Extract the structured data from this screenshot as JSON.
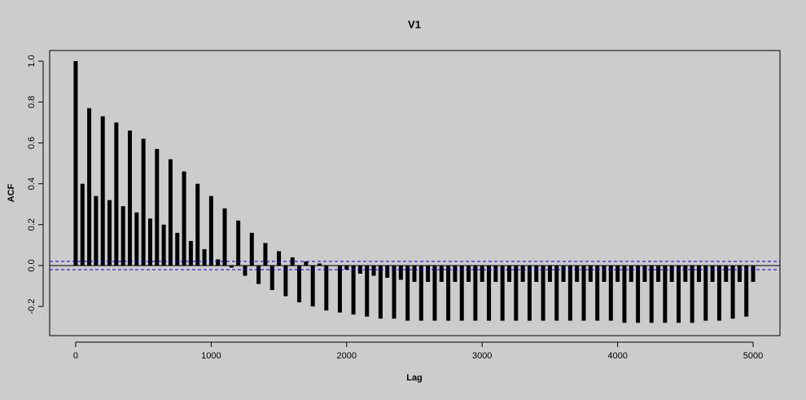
{
  "chart_data": {
    "type": "acf",
    "title": "V1",
    "x_label": "Lag",
    "y_label": "ACF",
    "x": [
      0,
      50,
      100,
      150,
      200,
      250,
      300,
      350,
      400,
      450,
      500,
      550,
      600,
      650,
      700,
      750,
      800,
      850,
      900,
      950,
      1000,
      1050,
      1100,
      1150,
      1200,
      1250,
      1300,
      1350,
      1400,
      1450,
      1500,
      1550,
      1600,
      1650,
      1700,
      1750,
      1800,
      1850,
      1900,
      1950,
      2000,
      2050,
      2100,
      2150,
      2200,
      2250,
      2300,
      2350,
      2400,
      2450,
      2500,
      2550,
      2600,
      2650,
      2700,
      2750,
      2800,
      2850,
      2900,
      2950,
      3000,
      3050,
      3100,
      3150,
      3200,
      3250,
      3300,
      3350,
      3400,
      3450,
      3500,
      3550,
      3600,
      3650,
      3700,
      3750,
      3800,
      3850,
      3900,
      3950,
      4000,
      4050,
      4100,
      4150,
      4200,
      4250,
      4300,
      4350,
      4400,
      4450,
      4500,
      4550,
      4600,
      4650,
      4700,
      4750,
      4800,
      4850,
      4900,
      4950,
      5000
    ],
    "values": [
      1.0,
      0.4,
      0.77,
      0.34,
      0.73,
      0.32,
      0.7,
      0.29,
      0.66,
      0.26,
      0.62,
      0.23,
      0.57,
      0.2,
      0.52,
      0.16,
      0.46,
      0.12,
      0.4,
      0.08,
      0.34,
      0.03,
      0.28,
      -0.01,
      0.22,
      -0.05,
      0.16,
      -0.09,
      0.11,
      -0.12,
      0.07,
      -0.15,
      0.04,
      -0.18,
      0.02,
      -0.2,
      0.01,
      -0.22,
      0.0,
      -0.23,
      -0.02,
      -0.24,
      -0.04,
      -0.25,
      -0.05,
      -0.26,
      -0.06,
      -0.26,
      -0.07,
      -0.27,
      -0.08,
      -0.27,
      -0.08,
      -0.27,
      -0.08,
      -0.27,
      -0.08,
      -0.27,
      -0.08,
      -0.27,
      -0.08,
      -0.27,
      -0.08,
      -0.27,
      -0.08,
      -0.27,
      -0.08,
      -0.27,
      -0.08,
      -0.27,
      -0.08,
      -0.27,
      -0.08,
      -0.27,
      -0.08,
      -0.27,
      -0.08,
      -0.27,
      -0.08,
      -0.27,
      -0.08,
      -0.28,
      -0.08,
      -0.28,
      -0.08,
      -0.28,
      -0.08,
      -0.28,
      -0.08,
      -0.28,
      -0.08,
      -0.28,
      -0.08,
      -0.27,
      -0.08,
      -0.27,
      -0.08,
      -0.26,
      -0.08,
      -0.25,
      -0.08
    ],
    "color": "#000000",
    "conf_lines": [
      0.02,
      -0.02
    ],
    "conf_color": "#0000cc",
    "xlim": [
      -192,
      5198
    ],
    "ylim": [
      -0.343,
      1.052
    ],
    "xticks": [
      0,
      1000,
      2000,
      3000,
      4000,
      5000
    ],
    "yticks": [
      -0.2,
      {
        "value": 0,
        "label": "0.0"
      },
      0.2,
      0.4,
      0.6,
      0.8,
      {
        "value": 1,
        "label": "1.0"
      }
    ]
  }
}
